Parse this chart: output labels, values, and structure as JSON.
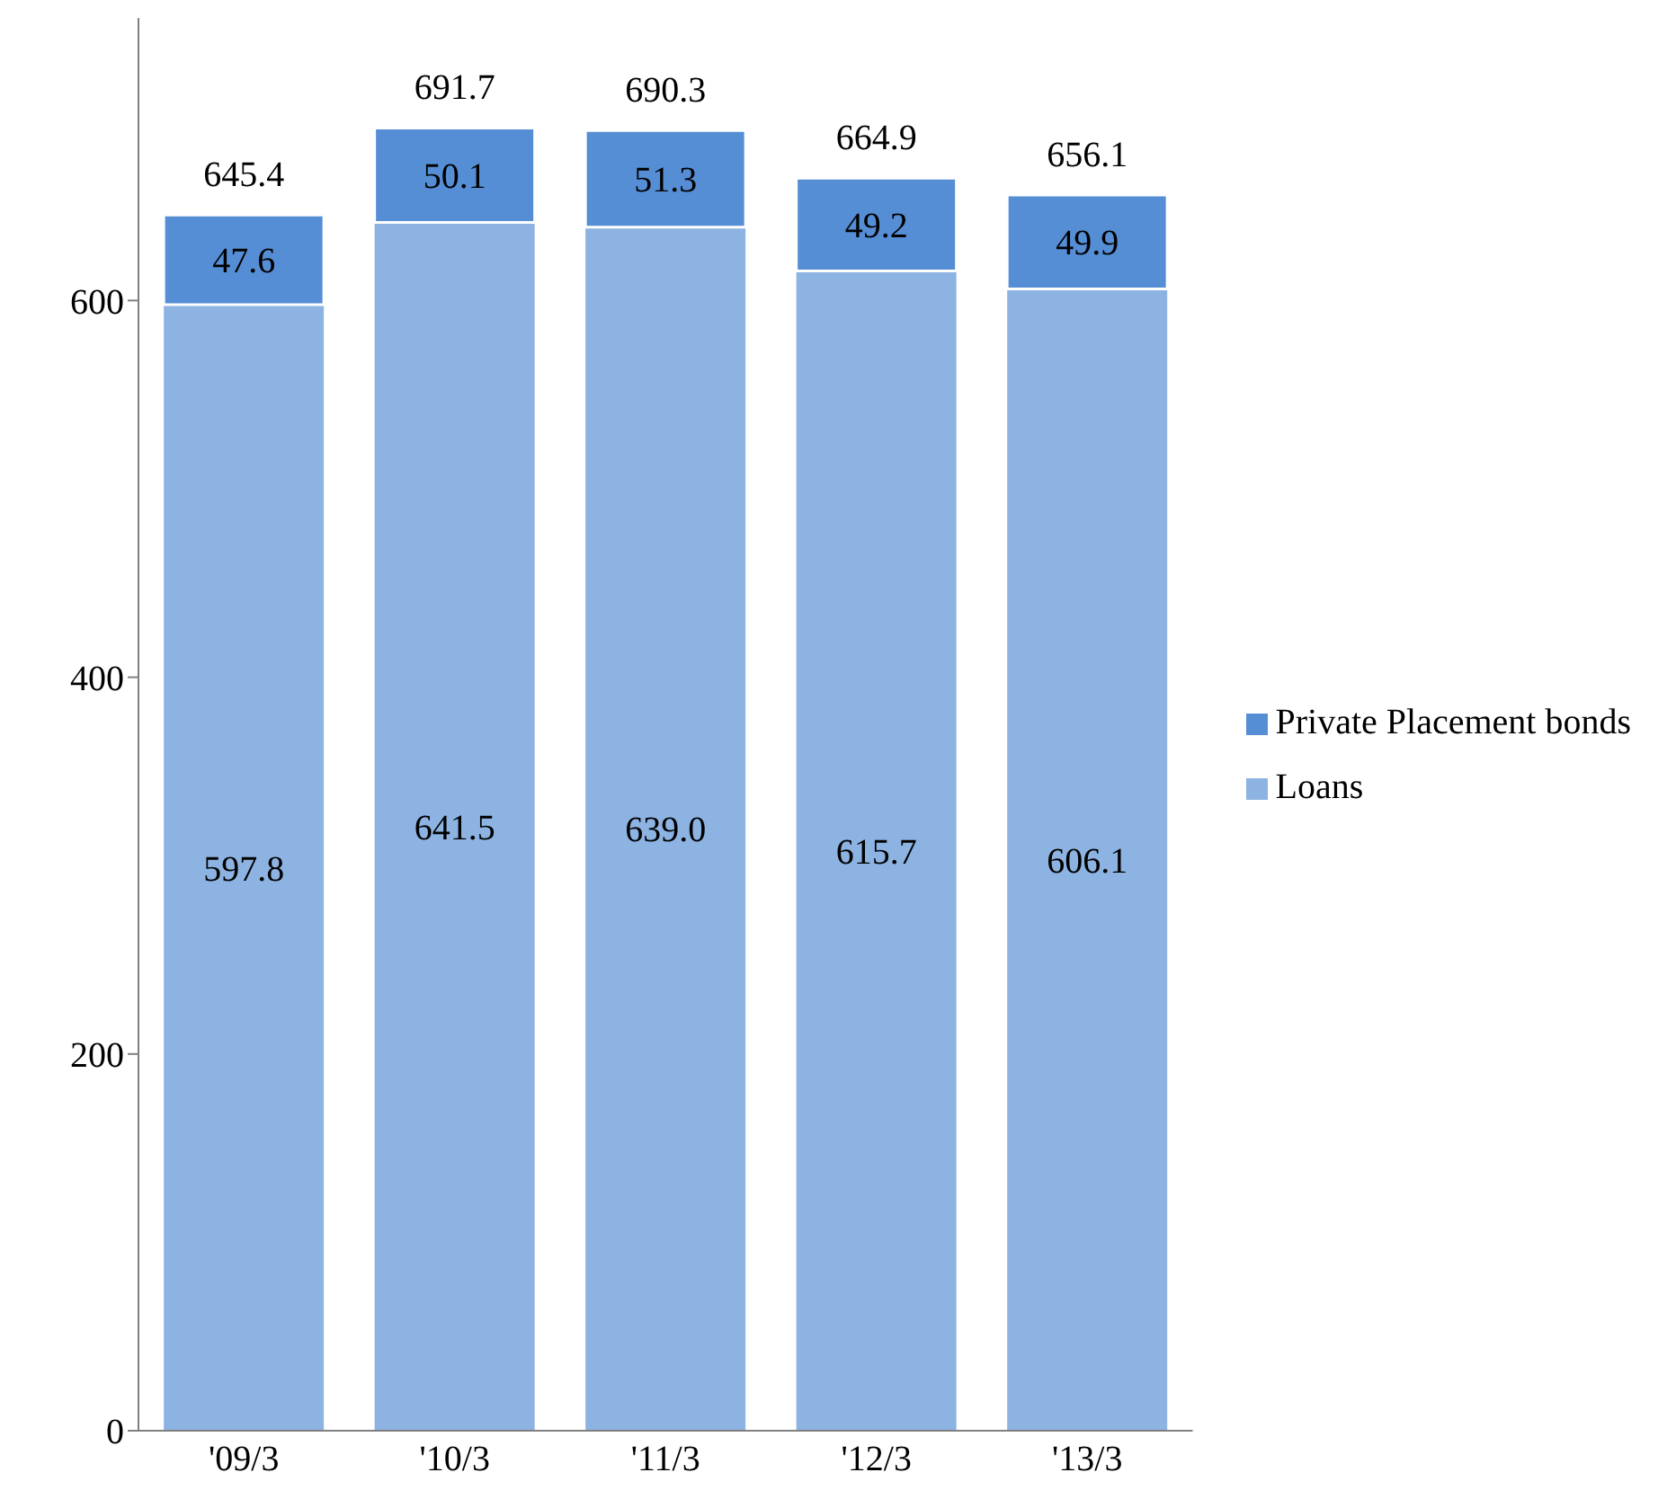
{
  "chart_data": {
    "type": "bar",
    "stacked": true,
    "categories": [
      "'09/3",
      "'10/3",
      "'11/3",
      "'12/3",
      "'13/3"
    ],
    "series": [
      {
        "name": "Loans",
        "color": "#8db3e2",
        "values": [
          597.8,
          641.5,
          639.0,
          615.7,
          606.1
        ],
        "value_labels": [
          "597.8",
          "641.5",
          "639.0",
          "615.7",
          "606.1"
        ]
      },
      {
        "name": "Private Placement bonds",
        "color": "#558ed5",
        "values": [
          47.6,
          50.1,
          51.3,
          49.2,
          49.9
        ],
        "value_labels": [
          "47.6",
          "50.1",
          "51.3",
          "49.2",
          "49.9"
        ]
      }
    ],
    "totals": [
      "645.4",
      "691.7",
      "690.3",
      "664.9",
      "656.1"
    ],
    "ylim": [
      0,
      750
    ],
    "yticks": [
      0,
      200,
      400,
      600
    ],
    "grid": false,
    "legend": "right"
  }
}
